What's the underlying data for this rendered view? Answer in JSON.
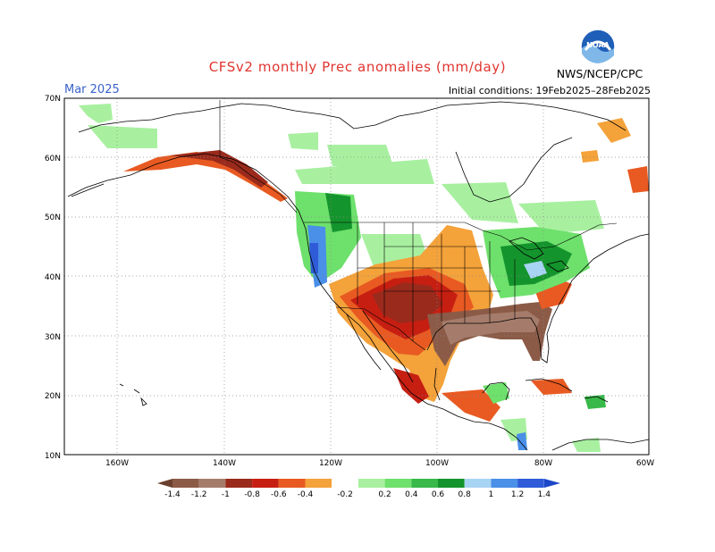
{
  "header": {
    "title": "CFSv2 monthly Prec anomalies (mm/day)",
    "month": "Mar 2025",
    "initial_conditions": "Initial conditions: 19Feb2025–28Feb2025",
    "agency": "NWS/NCEP/CPC",
    "logo_text": "NOAA"
  },
  "map": {
    "lat_labels": [
      "70N",
      "60N",
      "50N",
      "40N",
      "30N",
      "20N",
      "10N"
    ],
    "lon_labels": [
      "160W",
      "140W",
      "120W",
      "100W",
      "80W",
      "60W"
    ],
    "grid": "dotted",
    "projection": "lat-lon"
  },
  "colorbar": {
    "labels": [
      "-1.4",
      "-1.2",
      "-1",
      "-0.8",
      "-0.6",
      "-0.4",
      "-0.2",
      "0.2",
      "0.4",
      "0.6",
      "0.8",
      "1",
      "1.2",
      "1.4"
    ],
    "colors": [
      "#8b5b47",
      "#a57c6b",
      "#9a2a1c",
      "#c61f12",
      "#e85a22",
      "#f4a23a",
      "#ffffff",
      "#a8f0a0",
      "#6ee06c",
      "#38b94a",
      "#14942c",
      "#a8d4f4",
      "#4a8fe8",
      "#2f5bd8"
    ],
    "under_color": "#6b3f2e",
    "over_color": "#1c47c8"
  },
  "chart_data": {
    "type": "heatmap",
    "title": "CFSv2 monthly Prec anomalies (mm/day)",
    "subtitle": "Mar 2025",
    "xlabel": "",
    "ylabel": "",
    "x_range": [
      "170W",
      "60W"
    ],
    "y_range": [
      "10N",
      "70N"
    ],
    "regions": [
      {
        "area": "Southeastern US / Gulf Coast",
        "anomaly_mm_per_day": "< -1.4"
      },
      {
        "area": "Texas / southern Plains",
        "anomaly_mm_per_day": "-1.4 to -1.0"
      },
      {
        "area": "Southwest US / northern Mexico",
        "anomaly_mm_per_day": "-1.0 to -0.6"
      },
      {
        "area": "Central Plains / Rockies",
        "anomaly_mm_per_day": "-0.6 to -0.2"
      },
      {
        "area": "Southern Alaska coast",
        "anomaly_mm_per_day": "-0.8 to -0.4"
      },
      {
        "area": "Pacific Northwest coast",
        "anomaly_mm_per_day": "1.0 to 1.4"
      },
      {
        "area": "Great Lakes / Ohio Valley",
        "anomaly_mm_per_day": "0.2 to 1.2"
      },
      {
        "area": "Southern Canada",
        "anomaly_mm_per_day": "0.2 to 0.6"
      },
      {
        "area": "Caribbean (Hispaniola)",
        "anomaly_mm_per_day": "0.4 to 0.8"
      },
      {
        "area": "Northeastern Canada / Labrador",
        "anomaly_mm_per_day": "-0.6 to -0.2"
      }
    ]
  }
}
